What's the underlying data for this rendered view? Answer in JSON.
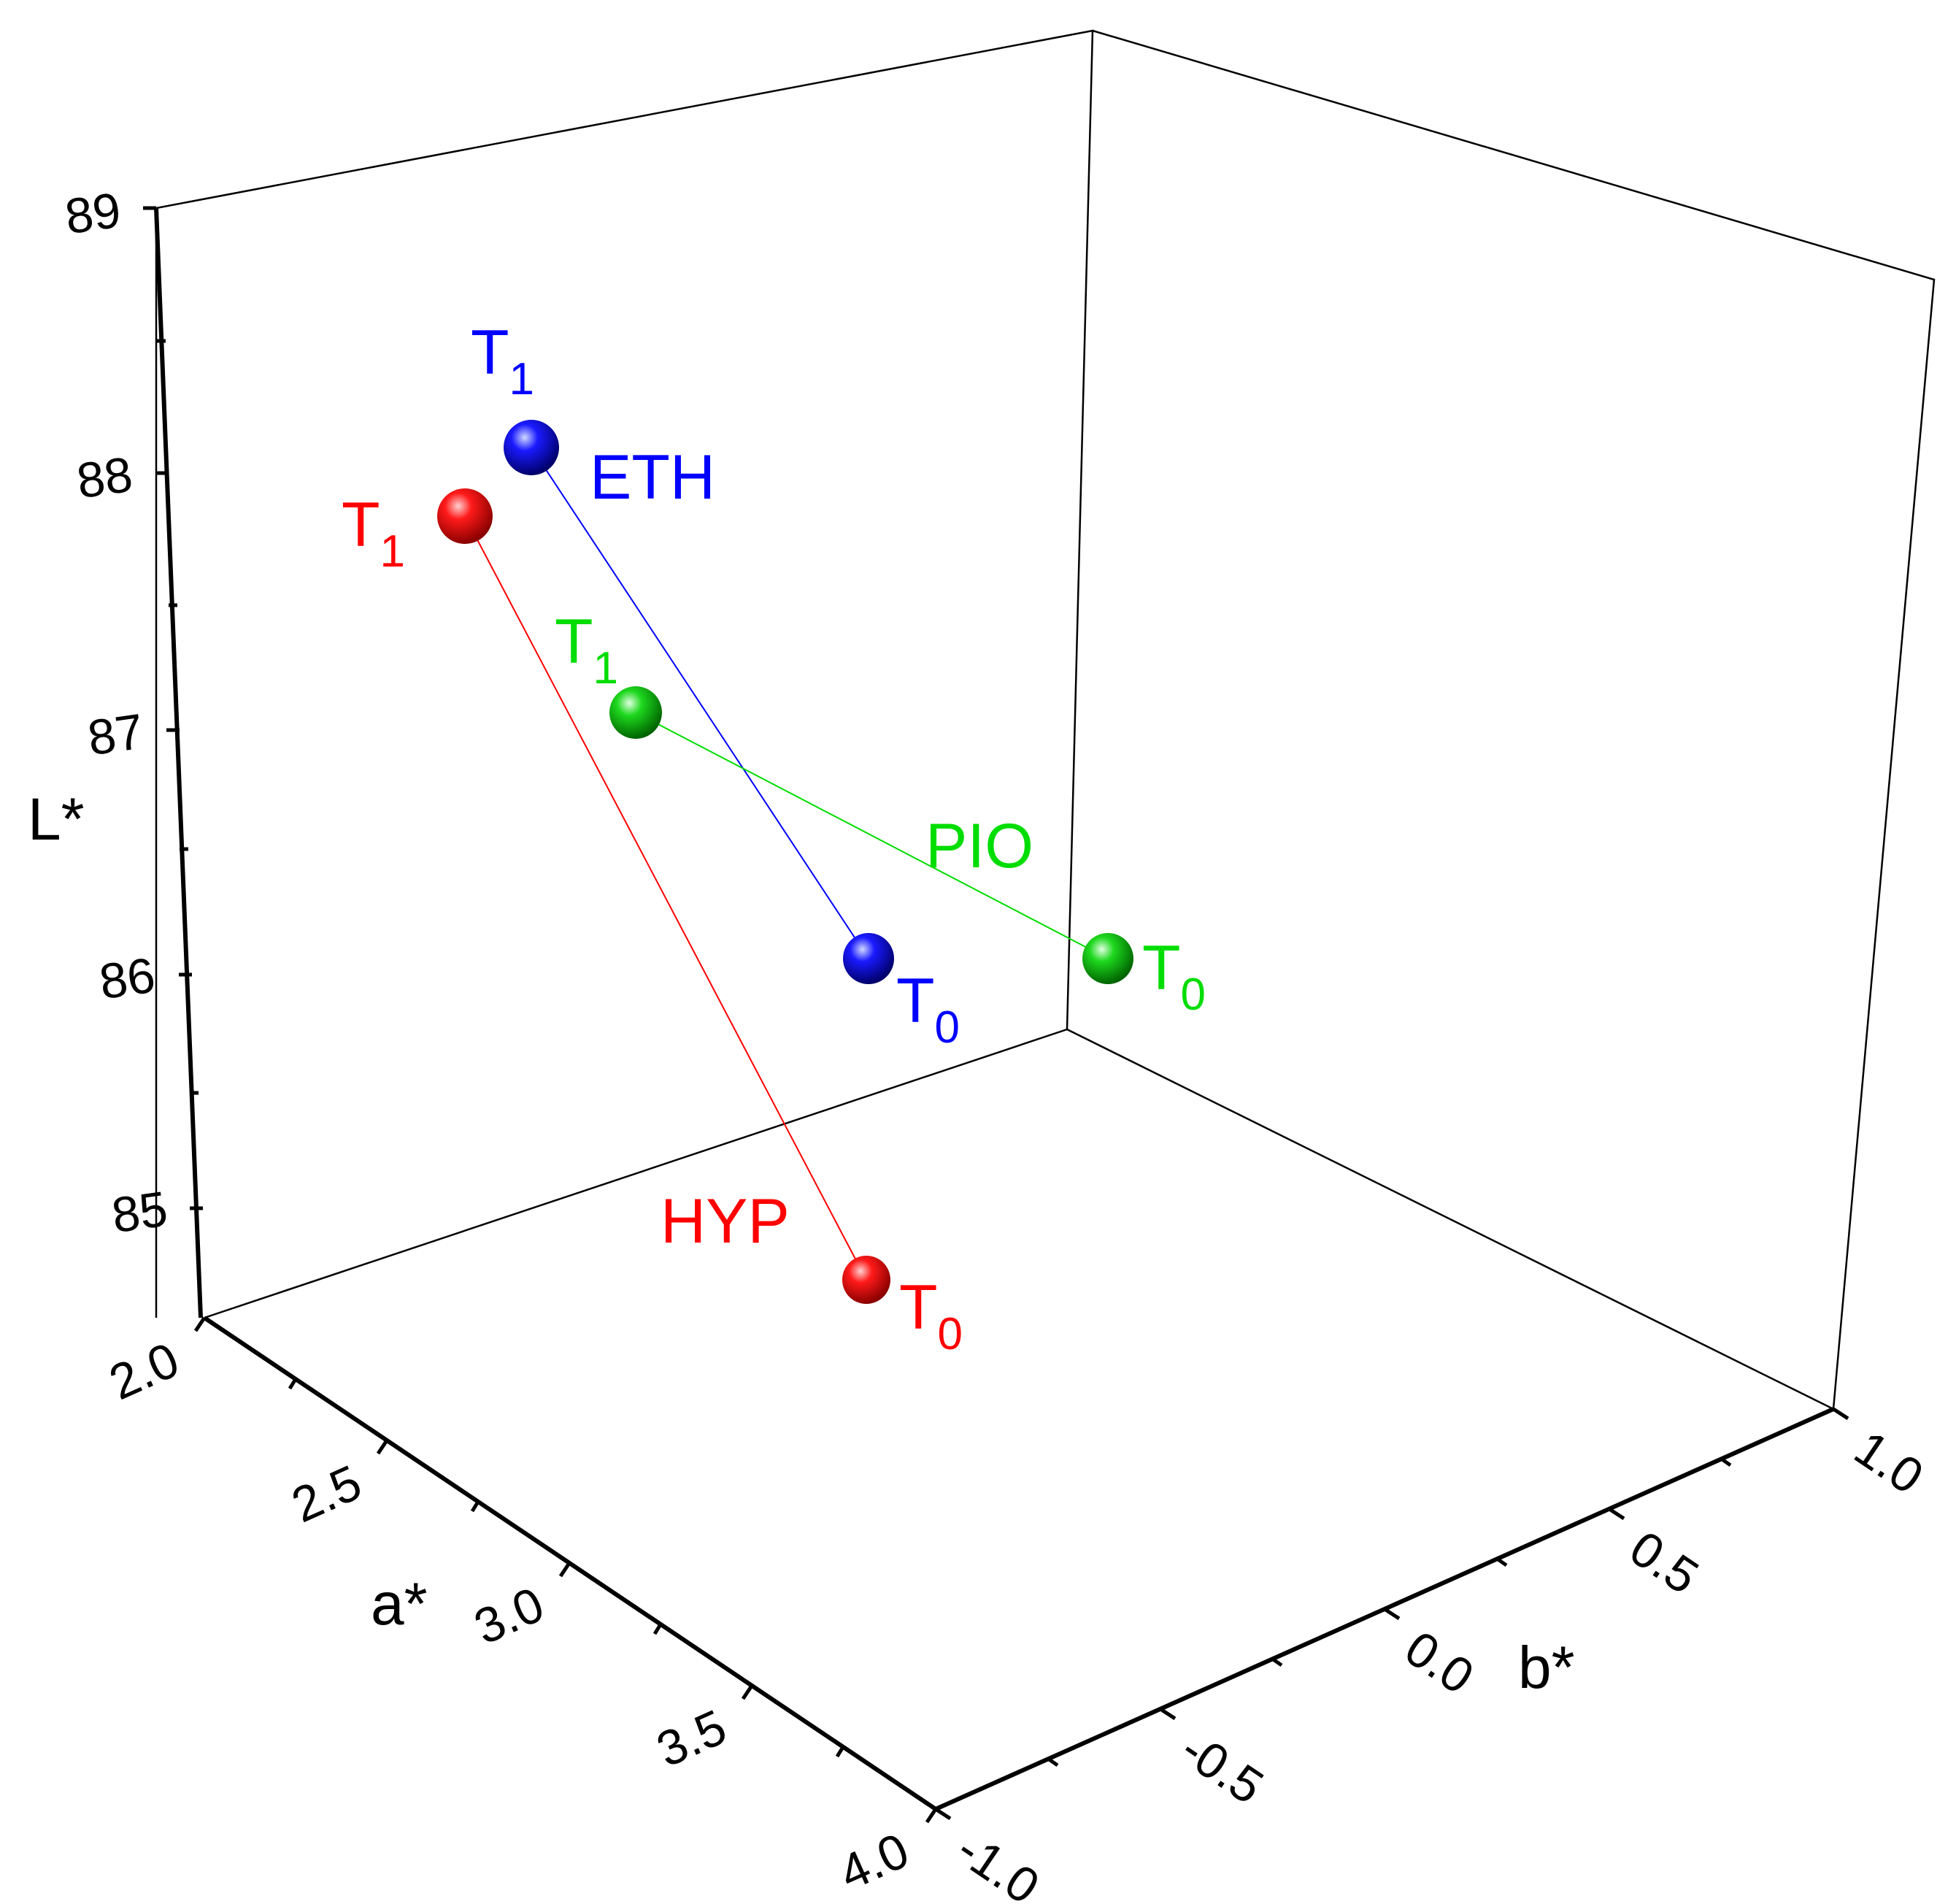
{
  "chart_data": {
    "type": "scatter",
    "projection": "3d",
    "axes": {
      "x": {
        "label": "a*",
        "range": [
          2.0,
          4.0
        ],
        "ticks": [
          "2.0",
          "2.5",
          "3.0",
          "3.5",
          "4.0"
        ]
      },
      "y": {
        "label": "b*",
        "range": [
          -1.0,
          1.0
        ],
        "ticks": [
          "-1.0",
          "-0.5",
          "0.0",
          "0.5",
          "1.0"
        ]
      },
      "z": {
        "label": "L*",
        "range": [
          84.5,
          89.0
        ],
        "ticks": [
          "85",
          "86",
          "87",
          "88",
          "89"
        ]
      }
    },
    "series": [
      {
        "name": "HYP",
        "color": "#ff0000",
        "points": [
          {
            "label": "T0",
            "a": 3.7,
            "b": -0.18,
            "L": 84.78
          },
          {
            "label": "T1",
            "a": 2.65,
            "b": -0.95,
            "L": 87.65
          }
        ]
      },
      {
        "name": "ETH",
        "color": "#0000ff",
        "points": [
          {
            "label": "T0",
            "a": 3.28,
            "b": 0.19,
            "L": 86.15
          },
          {
            "label": "T1",
            "a": 2.48,
            "b": -0.62,
            "L": 87.95
          }
        ]
      },
      {
        "name": "PIO",
        "color": "#00dd00",
        "points": [
          {
            "label": "T0",
            "a": 2.77,
            "b": 0.71,
            "L": 86.1
          },
          {
            "label": "T1",
            "a": 2.95,
            "b": -0.41,
            "L": 86.88
          }
        ]
      }
    ],
    "grid": false,
    "legend": "none"
  }
}
